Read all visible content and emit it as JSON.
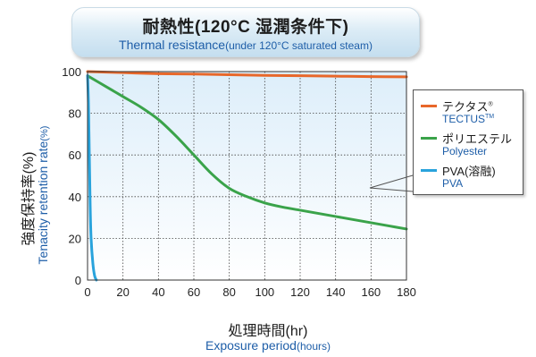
{
  "title": {
    "jp": "耐熱性(120°C 湿潤条件下)",
    "en_main": "Thermal resistance",
    "en_sub": "(under 120°C saturated steam)"
  },
  "axes": {
    "y_jp": "強度保持率(%)",
    "y_en_main": "Tenacity retention rate",
    "y_en_sub": "(%)",
    "x_jp": "処理時間(hr)",
    "x_en_main": "Exposure period",
    "x_en_sub": "(hours)"
  },
  "colors": {
    "tectus": "#e8672a",
    "polyester": "#3aa34a",
    "pva": "#29a3dc",
    "plot_top": "#ddeefa",
    "plot_bottom": "#ffffff"
  },
  "legend": [
    {
      "key": "tectus",
      "jp": "テクタス",
      "jp_mark": "®",
      "en": "TECTUS",
      "en_mark": "TM"
    },
    {
      "key": "polyester",
      "jp": "ポリエステル",
      "jp_mark": "",
      "en": "Polyester",
      "en_mark": ""
    },
    {
      "key": "pva",
      "jp": "PVA(溶融)",
      "jp_mark": "",
      "en": "PVA",
      "en_mark": ""
    }
  ],
  "chart_data": {
    "type": "line",
    "xlim": [
      0,
      180
    ],
    "ylim": [
      0,
      100
    ],
    "xticks": [
      0,
      20,
      40,
      60,
      80,
      100,
      120,
      140,
      160,
      180
    ],
    "yticks": [
      0,
      20,
      40,
      60,
      80,
      100
    ],
    "grid": true,
    "legend_position": "right",
    "series": [
      {
        "name": "テクタス® TECTUS™",
        "key": "tectus",
        "x": [
          0,
          20,
          40,
          60,
          80,
          100,
          120,
          140,
          160,
          180
        ],
        "y": [
          100,
          99.5,
          99,
          98.8,
          98.5,
          98.2,
          98,
          97.8,
          97.6,
          97.5
        ]
      },
      {
        "name": "ポリエステル Polyester",
        "key": "polyester",
        "x": [
          0,
          10,
          20,
          30,
          40,
          50,
          60,
          70,
          80,
          90,
          100,
          110,
          120,
          130,
          140,
          150,
          160,
          170,
          180
        ],
        "y": [
          98,
          93,
          88,
          83,
          77,
          69,
          60,
          51,
          44,
          40,
          37,
          35,
          33.5,
          32,
          30.5,
          29,
          27.5,
          26,
          24.5
        ]
      },
      {
        "name": "PVA(溶融) PVA",
        "key": "pva",
        "x": [
          0,
          0.5,
          1,
          1.5,
          2,
          3,
          4,
          5
        ],
        "y": [
          98,
          85,
          60,
          35,
          20,
          8,
          2,
          0
        ]
      }
    ]
  }
}
